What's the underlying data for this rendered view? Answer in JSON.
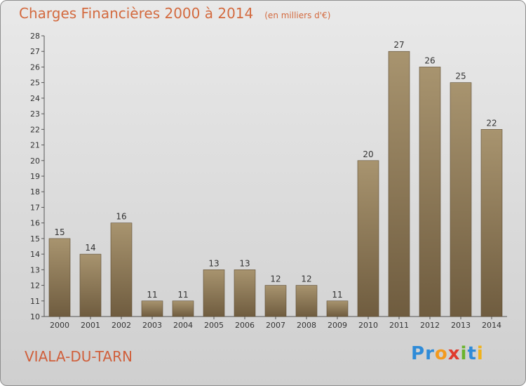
{
  "chart_data": {
    "type": "bar",
    "title": "Charges Financières 2000 à 2014",
    "unit": "(en milliers d'€)",
    "categories": [
      "2000",
      "2001",
      "2002",
      "2003",
      "2004",
      "2005",
      "2006",
      "2007",
      "2008",
      "2009",
      "2010",
      "2011",
      "2012",
      "2013",
      "2014"
    ],
    "values": [
      15,
      14,
      16,
      11,
      11,
      13,
      13,
      12,
      12,
      11,
      20,
      27,
      26,
      25,
      22
    ],
    "ylim": [
      10,
      28
    ],
    "yticks": [
      10,
      11,
      12,
      13,
      14,
      15,
      16,
      17,
      18,
      19,
      20,
      21,
      22,
      23,
      24,
      25,
      26,
      27,
      28
    ],
    "grid": false,
    "bar_color": "#8f7a59",
    "title_color": "#d36a3f"
  },
  "commune": "VIALA-DU-TARN",
  "logo": {
    "letters": [
      {
        "ch": "P",
        "color": "#2e8bd8"
      },
      {
        "ch": "r",
        "color": "#2e8bd8"
      },
      {
        "ch": "o",
        "color": "#f39a1e"
      },
      {
        "ch": "x",
        "color": "#e03a2d"
      },
      {
        "ch": "i",
        "color": "#6ab42d"
      },
      {
        "ch": "t",
        "color": "#2e8bd8"
      },
      {
        "ch": "i",
        "color": "#f0b21a"
      }
    ]
  }
}
